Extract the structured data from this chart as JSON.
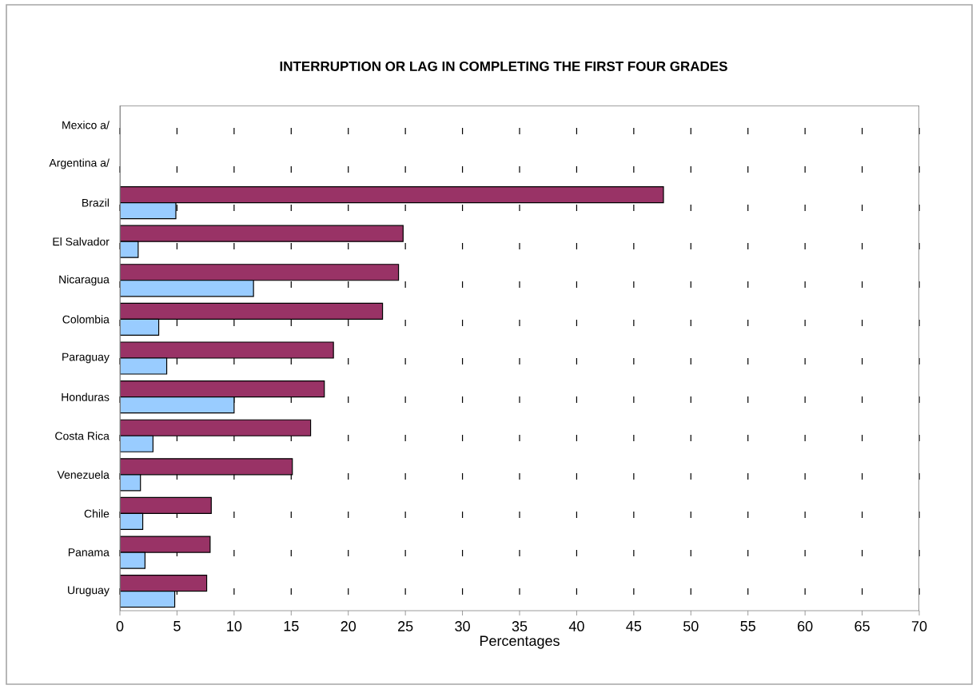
{
  "chart_data": {
    "type": "bar",
    "orientation": "horizontal",
    "title": "INTERRUPTION OR LAG IN COMPLETING THE FIRST FOUR GRADES",
    "xlabel": "Percentages",
    "categories": [
      "Mexico a/",
      "Argentina a/",
      "Brazil",
      "El Salvador",
      "Nicaragua",
      "Colombia",
      "Paraguay",
      "Honduras",
      "Costa Rica",
      "Venezuela",
      "Chile",
      "Panama",
      "Uruguay"
    ],
    "series": [
      {
        "color": "#993366",
        "values": [
          null,
          null,
          47.6,
          24.8,
          24.4,
          23.0,
          18.7,
          17.9,
          16.7,
          15.1,
          8.0,
          7.9,
          7.6
        ]
      },
      {
        "color": "#99ccff",
        "values": [
          null,
          null,
          4.9,
          1.6,
          11.7,
          3.4,
          4.1,
          10.0,
          2.9,
          1.8,
          2.0,
          2.2,
          4.8
        ]
      }
    ],
    "xlim": [
      0,
      70
    ],
    "xticks": [
      0,
      5,
      10,
      15,
      20,
      25,
      30,
      35,
      40,
      45,
      50,
      55,
      60,
      65,
      70
    ],
    "grid": "x"
  }
}
